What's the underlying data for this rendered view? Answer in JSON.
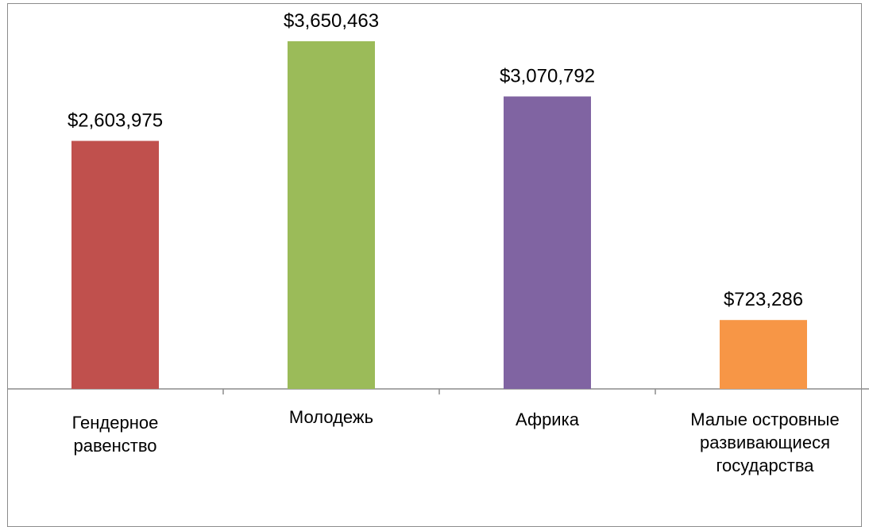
{
  "chart_data": {
    "type": "bar",
    "categories": [
      "Гендерное\nравенство",
      "Молодежь",
      "Африка",
      "Малые островные\nразвивающиеся\nгосударства"
    ],
    "values": [
      2603975,
      3650463,
      3070792,
      723286
    ],
    "data_labels": [
      "$2,603,975",
      "$3,650,463",
      "$3,070,792",
      "$723,286"
    ],
    "colors": [
      "#c0504d",
      "#9bbb59",
      "#8064a2",
      "#f79646"
    ],
    "title": "",
    "xlabel": "",
    "ylabel": "",
    "ylim": [
      0,
      4000000
    ],
    "grid": false,
    "legend": "none"
  }
}
